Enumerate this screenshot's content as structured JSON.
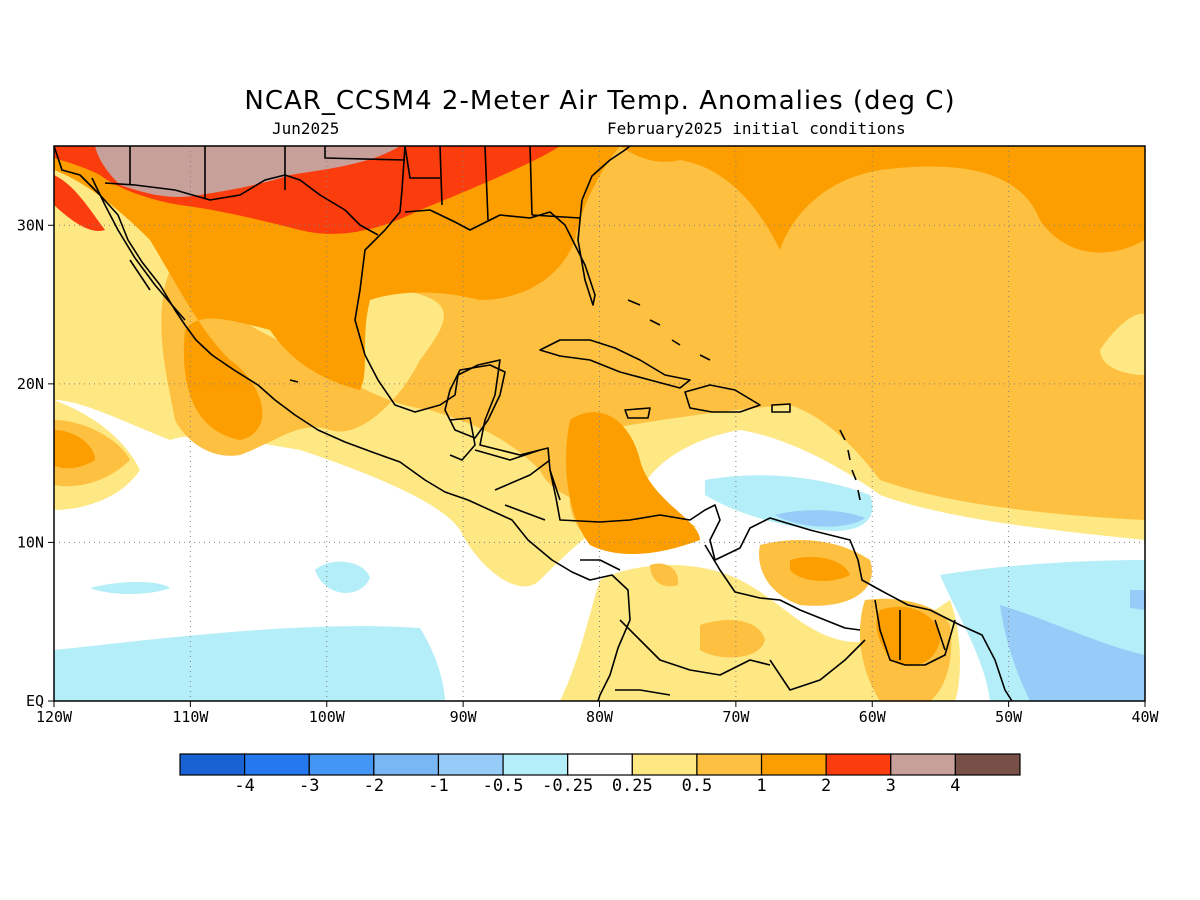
{
  "title": "NCAR_CCSM4 2-Meter Air Temp. Anomalies (deg C)",
  "subtitle_left": "Jun2025",
  "subtitle_right": "February2025 initial conditions",
  "map": {
    "lon_range": [
      -120,
      -40
    ],
    "lat_range": [
      0,
      35
    ],
    "x_ticks": [
      "120W",
      "110W",
      "100W",
      "90W",
      "80W",
      "70W",
      "60W",
      "50W",
      "40W"
    ],
    "y_ticks": [
      "EQ",
      "10N",
      "20N",
      "30N"
    ],
    "grid": true
  },
  "colorbar": {
    "labels": [
      "-4",
      "-3",
      "-2",
      "-1",
      "-0.5",
      "-0.25",
      "0.25",
      "0.5",
      "1",
      "2",
      "3",
      "4"
    ],
    "colors": [
      "#1862d4",
      "#2678ee",
      "#4496f4",
      "#78b6f4",
      "#98ccf8",
      "#b4eef8",
      "#ffffff",
      "#fee884",
      "#fdc040",
      "#fd9e00",
      "#fb3c0c",
      "#c8a09a",
      "#785048"
    ]
  }
}
